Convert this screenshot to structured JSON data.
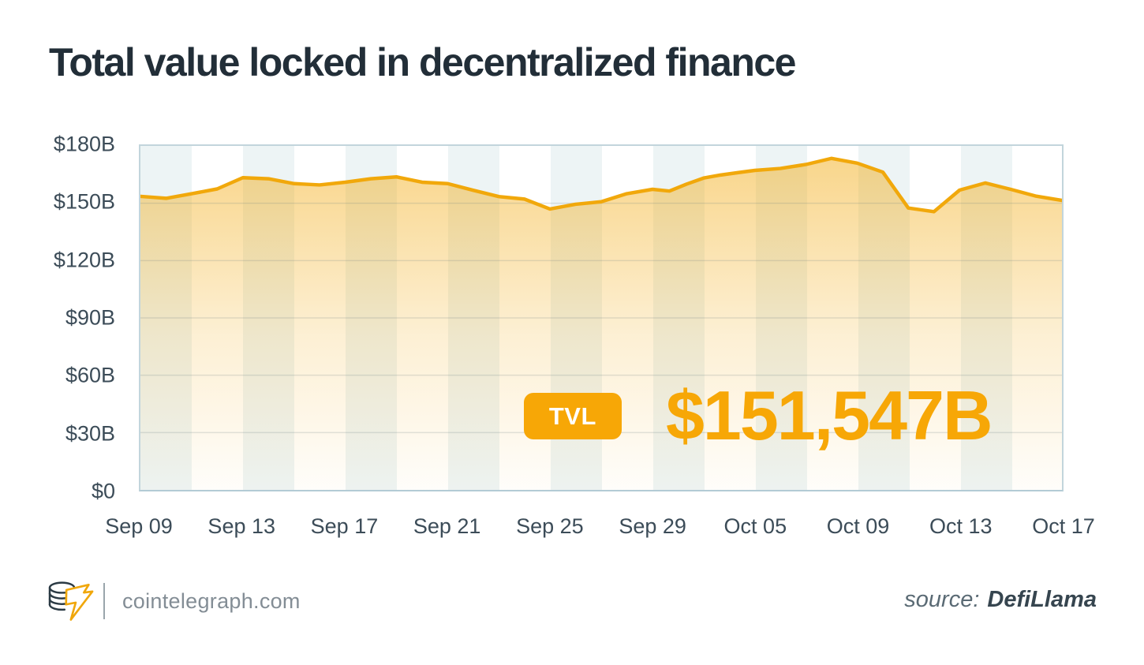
{
  "page": {
    "title": "Total value locked in decentralized finance"
  },
  "colors": {
    "accent": "#F7A706",
    "line": "#F1A80B",
    "fill_base": "#F2A90D",
    "title_text": "#222E38",
    "axis_text": "#3C4C58",
    "band": "#EDF4F5",
    "plot_border": "#C2D5DC",
    "grid": "rgba(105,125,130,0.20)",
    "footer_text": "#838D95",
    "source_label": "#5A6A74",
    "source_value": "#36454F"
  },
  "callout": {
    "badge_label": "TVL",
    "value": "$151,547B"
  },
  "footer": {
    "site": "cointelegraph.com",
    "logo": "cointelegraph-coin-lightning-logo",
    "source_label": "source:",
    "source_value": "DefiLlama"
  },
  "chart_data": {
    "type": "area",
    "title": "Total value locked in decentralized finance",
    "series_name": "TVL",
    "unit": "billion USD",
    "xlabel": "",
    "ylabel": "",
    "ylim": [
      0,
      180
    ],
    "grid": "horizontal",
    "background_bands": "vertical-alternating",
    "legend_position": "none",
    "y_ticks": [
      "$180B",
      "$150B",
      "$120B",
      "$90B",
      "$60B",
      "$30B",
      "$0"
    ],
    "y_tick_values": [
      180,
      150,
      120,
      90,
      60,
      30,
      0
    ],
    "x_ticks": [
      "Sep 09",
      "Sep 13",
      "Sep 17",
      "Sep 21",
      "Sep 25",
      "Sep 29",
      "Oct 05",
      "Oct 09",
      "Oct 13",
      "Oct 17"
    ],
    "points": [
      {
        "date": "Sep 09",
        "x": 0.0,
        "tvl_b": 153.6
      },
      {
        "date": "Sep 10",
        "x": 0.0278,
        "tvl_b": 152.6
      },
      {
        "date": "Sep 11",
        "x": 0.0556,
        "tvl_b": 155.0
      },
      {
        "date": "Sep 12",
        "x": 0.0833,
        "tvl_b": 157.5
      },
      {
        "date": "Sep 13",
        "x": 0.1111,
        "tvl_b": 163.4
      },
      {
        "date": "Sep 14",
        "x": 0.1389,
        "tvl_b": 162.8
      },
      {
        "date": "Sep 15",
        "x": 0.1667,
        "tvl_b": 160.3
      },
      {
        "date": "Sep 16",
        "x": 0.1944,
        "tvl_b": 159.6
      },
      {
        "date": "Sep 17",
        "x": 0.2222,
        "tvl_b": 161.0
      },
      {
        "date": "Sep 18",
        "x": 0.25,
        "tvl_b": 162.8
      },
      {
        "date": "Sep 19",
        "x": 0.2778,
        "tvl_b": 163.8
      },
      {
        "date": "Sep 20",
        "x": 0.3056,
        "tvl_b": 161.0
      },
      {
        "date": "Sep 21",
        "x": 0.3333,
        "tvl_b": 160.3
      },
      {
        "date": "Sep 22",
        "x": 0.3611,
        "tvl_b": 156.8
      },
      {
        "date": "Sep 23",
        "x": 0.3889,
        "tvl_b": 153.5
      },
      {
        "date": "Sep 24",
        "x": 0.4167,
        "tvl_b": 152.2
      },
      {
        "date": "Sep 25",
        "x": 0.4444,
        "tvl_b": 147.0
      },
      {
        "date": "Sep 26",
        "x": 0.4722,
        "tvl_b": 149.5
      },
      {
        "date": "Sep 27",
        "x": 0.5,
        "tvl_b": 150.8
      },
      {
        "date": "Sep 28",
        "x": 0.5278,
        "tvl_b": 155.0
      },
      {
        "date": "Sep 29",
        "x": 0.5556,
        "tvl_b": 157.3
      },
      {
        "date": "Sep 30",
        "x": 0.5741,
        "tvl_b": 156.4
      },
      {
        "date": "Oct 01",
        "x": 0.5926,
        "tvl_b": 160.0
      },
      {
        "date": "Oct 02",
        "x": 0.6111,
        "tvl_b": 163.2
      },
      {
        "date": "Oct 03",
        "x": 0.6296,
        "tvl_b": 164.8
      },
      {
        "date": "Oct 04",
        "x": 0.6481,
        "tvl_b": 166.0
      },
      {
        "date": "Oct 05",
        "x": 0.6667,
        "tvl_b": 167.2
      },
      {
        "date": "Oct 06",
        "x": 0.6944,
        "tvl_b": 168.2
      },
      {
        "date": "Oct 07",
        "x": 0.7222,
        "tvl_b": 170.3
      },
      {
        "date": "Oct 08",
        "x": 0.75,
        "tvl_b": 173.5
      },
      {
        "date": "Oct 09",
        "x": 0.7778,
        "tvl_b": 171.0
      },
      {
        "date": "Oct 10",
        "x": 0.8056,
        "tvl_b": 166.3
      },
      {
        "date": "Oct 11",
        "x": 0.8333,
        "tvl_b": 147.5
      },
      {
        "date": "Oct 12",
        "x": 0.8611,
        "tvl_b": 145.6
      },
      {
        "date": "Oct 13",
        "x": 0.8889,
        "tvl_b": 156.9
      },
      {
        "date": "Oct 14",
        "x": 0.9167,
        "tvl_b": 160.6
      },
      {
        "date": "Oct 15",
        "x": 0.9444,
        "tvl_b": 157.3
      },
      {
        "date": "Oct 16",
        "x": 0.9722,
        "tvl_b": 153.7
      },
      {
        "date": "Oct 17",
        "x": 1.0,
        "tvl_b": 151.5
      }
    ]
  }
}
